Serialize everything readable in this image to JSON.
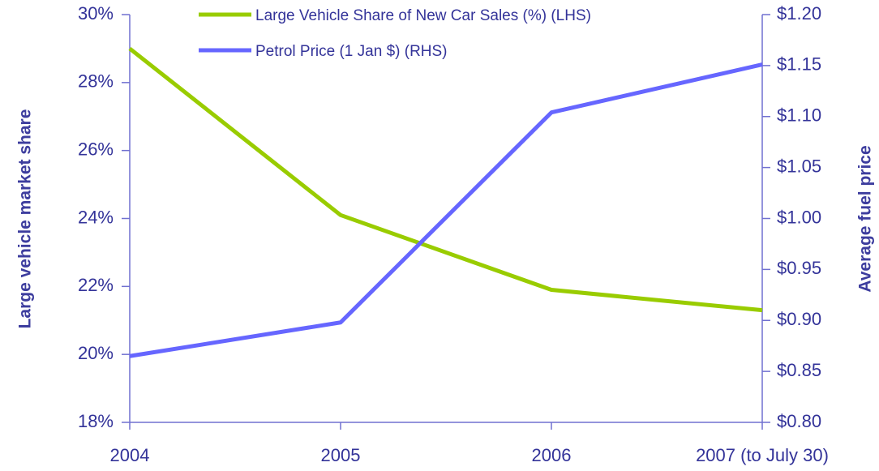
{
  "chart_data": {
    "type": "line",
    "categories": [
      "2004",
      "2005",
      "2006",
      "2007 (to July 30)"
    ],
    "series": [
      {
        "name": "Large Vehicle Share of New Car Sales (%) (LHS)",
        "color": "#99cc00",
        "values": [
          29.0,
          24.1,
          21.9,
          21.3
        ]
      },
      {
        "name": "Petrol Price (1 Jan $) (RHS)",
        "color": "#6666ff",
        "values": [
          0.865,
          0.898,
          1.104,
          1.151
        ],
        "axis": "y2"
      }
    ],
    "y_label": "Large vehicle market share",
    "y2_label": "Average fuel price",
    "ylim": [
      18,
      30
    ],
    "yticks": [
      {
        "value": 18,
        "label": "18%"
      },
      {
        "value": 20,
        "label": "20%"
      },
      {
        "value": 22,
        "label": "22%"
      },
      {
        "value": 24,
        "label": "24%"
      },
      {
        "value": 26,
        "label": "26%"
      },
      {
        "value": 28,
        "label": "28%"
      },
      {
        "value": 30,
        "label": "30%"
      }
    ],
    "y2lim": [
      0.8,
      1.2
    ],
    "y2ticks": [
      {
        "value": 0.8,
        "label": "$0.80"
      },
      {
        "value": 0.85,
        "label": "$0.85"
      },
      {
        "value": 0.9,
        "label": "$0.90"
      },
      {
        "value": 0.95,
        "label": "$0.95"
      },
      {
        "value": 1.0,
        "label": "$1.00"
      },
      {
        "value": 1.05,
        "label": "$1.05"
      },
      {
        "value": 1.1,
        "label": "$1.10"
      },
      {
        "value": 1.15,
        "label": "$1.15"
      },
      {
        "value": 1.2,
        "label": "$1.20"
      }
    ],
    "grid": false
  }
}
